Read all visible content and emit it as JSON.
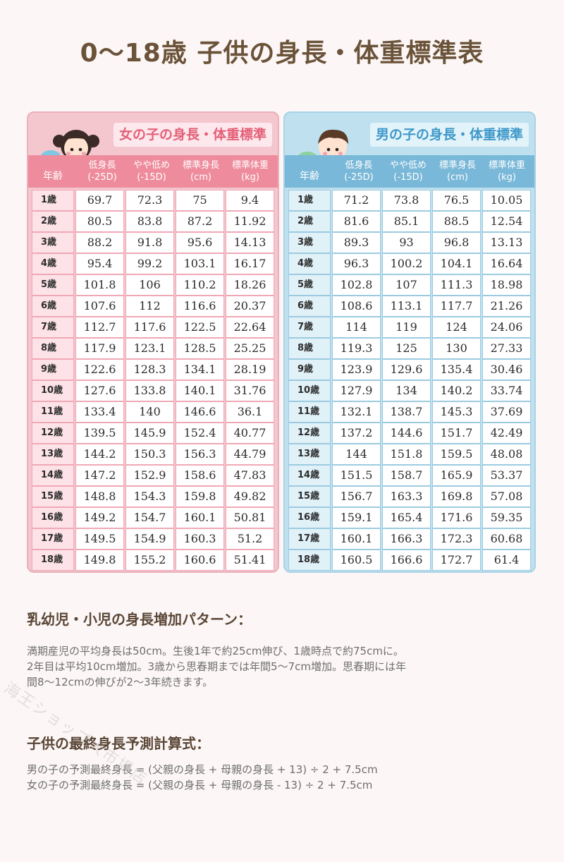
{
  "title": "0〜18歳 子供の身長・体重標準表",
  "columns": {
    "age": "年齢",
    "low": [
      "低身長",
      "(-25D)"
    ],
    "slightly_low": [
      "やや低め",
      "(-15D)"
    ],
    "std_height": [
      "標準身長",
      "(cm)"
    ],
    "std_weight": [
      "標準体重",
      "(kg)"
    ]
  },
  "girl": {
    "panel_title": "女の子の身長・体重標準",
    "rows": [
      [
        "1歳",
        "69.7",
        "72.3",
        "75",
        "9.4"
      ],
      [
        "2歳",
        "80.5",
        "83.8",
        "87.2",
        "11.92"
      ],
      [
        "3歳",
        "88.2",
        "91.8",
        "95.6",
        "14.13"
      ],
      [
        "4歳",
        "95.4",
        "99.2",
        "103.1",
        "16.17"
      ],
      [
        "5歳",
        "101.8",
        "106",
        "110.2",
        "18.26"
      ],
      [
        "6歳",
        "107.6",
        "112",
        "116.6",
        "20.37"
      ],
      [
        "7歳",
        "112.7",
        "117.6",
        "122.5",
        "22.64"
      ],
      [
        "8歳",
        "117.9",
        "123.1",
        "128.5",
        "25.25"
      ],
      [
        "9歳",
        "122.6",
        "128.3",
        "134.1",
        "28.19"
      ],
      [
        "10歳",
        "127.6",
        "133.8",
        "140.1",
        "31.76"
      ],
      [
        "11歳",
        "133.4",
        "140",
        "146.6",
        "36.1"
      ],
      [
        "12歳",
        "139.5",
        "145.9",
        "152.4",
        "40.77"
      ],
      [
        "13歳",
        "144.2",
        "150.3",
        "156.3",
        "44.79"
      ],
      [
        "14歳",
        "147.2",
        "152.9",
        "158.6",
        "47.83"
      ],
      [
        "15歳",
        "148.8",
        "154.3",
        "159.8",
        "49.82"
      ],
      [
        "16歳",
        "149.2",
        "154.7",
        "160.1",
        "50.81"
      ],
      [
        "17歳",
        "149.5",
        "154.9",
        "160.3",
        "51.2"
      ],
      [
        "18歳",
        "149.8",
        "155.2",
        "160.6",
        "51.41"
      ]
    ]
  },
  "boy": {
    "panel_title": "男の子の身長・体重標準",
    "rows": [
      [
        "1歳",
        "71.2",
        "73.8",
        "76.5",
        "10.05"
      ],
      [
        "2歳",
        "81.6",
        "85.1",
        "88.5",
        "12.54"
      ],
      [
        "3歳",
        "89.3",
        "93",
        "96.8",
        "13.13"
      ],
      [
        "4歳",
        "96.3",
        "100.2",
        "104.1",
        "16.64"
      ],
      [
        "5歳",
        "102.8",
        "107",
        "111.3",
        "18.98"
      ],
      [
        "6歳",
        "108.6",
        "113.1",
        "117.7",
        "21.26"
      ],
      [
        "7歳",
        "114",
        "119",
        "124",
        "24.06"
      ],
      [
        "8歳",
        "119.3",
        "125",
        "130",
        "27.33"
      ],
      [
        "9歳",
        "123.9",
        "129.6",
        "135.4",
        "30.46"
      ],
      [
        "10歳",
        "127.9",
        "134",
        "140.2",
        "33.74"
      ],
      [
        "11歳",
        "132.1",
        "138.7",
        "145.3",
        "37.69"
      ],
      [
        "12歳",
        "137.2",
        "144.6",
        "151.7",
        "42.49"
      ],
      [
        "13歳",
        "144",
        "151.8",
        "159.5",
        "48.08"
      ],
      [
        "14歳",
        "151.5",
        "158.7",
        "165.9",
        "53.37"
      ],
      [
        "15歳",
        "156.7",
        "163.3",
        "169.8",
        "57.08"
      ],
      [
        "16歳",
        "159.1",
        "165.4",
        "171.6",
        "59.35"
      ],
      [
        "17歳",
        "160.1",
        "166.3",
        "172.3",
        "60.68"
      ],
      [
        "18歳",
        "160.5",
        "166.6",
        "172.7",
        "61.4"
      ]
    ]
  },
  "growth_section": {
    "heading": "乳幼児・小児の身長増加パターン：",
    "lines": [
      "満期産児の平均身長は50cm。生後1年で約25cm伸び、1歳時点で約75cmに。",
      "2年目は平均10cm増加。3歳から思春期までは年間5〜7cm増加。思春期には年",
      "間8〜12cmの伸びが2〜3年続きます。"
    ]
  },
  "formula_section": {
    "heading": "子供の最終身長予測計算式：",
    "boy_formula": "男の子の予測最終身長 = (父親の身長 + 母親の身長 + 13) ÷ 2 + 7.5cm",
    "girl_formula": "女の子の予測最終身長 = (父親の身長 + 母親の身長 - 13) ÷ 2 + 7.5cm"
  },
  "watermark": "海王ショップ大市場店",
  "colors": {
    "title": "#6b5339",
    "girl_accent": "#ee8c9d",
    "boy_accent": "#79b8d8"
  }
}
